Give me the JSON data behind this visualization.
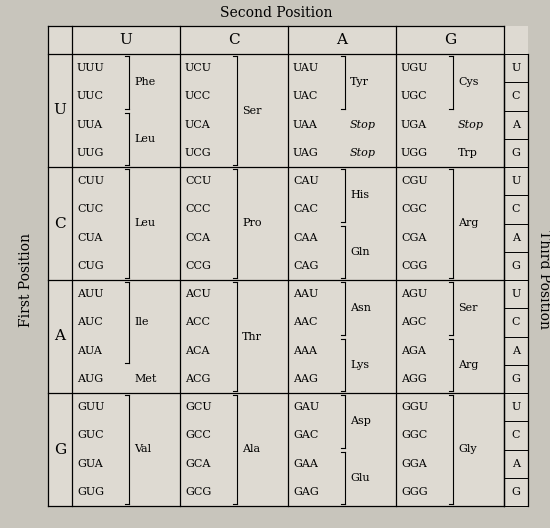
{
  "title": "Second Position",
  "left_label": "First Position",
  "right_label": "Third Position",
  "second_pos": [
    "U",
    "C",
    "A",
    "G"
  ],
  "first_pos": [
    "U",
    "C",
    "A",
    "G"
  ],
  "third_pos": [
    "U",
    "C",
    "A",
    "G"
  ],
  "bg_color": "#c8c5bc",
  "cell_bg": "#dedad2",
  "table_data": {
    "U": {
      "U": {
        "codons": [
          "UUU",
          "UUC",
          "UUA",
          "UUG"
        ],
        "groups": [
          [
            0,
            1,
            "Phe",
            false
          ],
          [
            2,
            3,
            "Leu",
            false
          ]
        ]
      },
      "C": {
        "codons": [
          "UCU",
          "UCC",
          "UCA",
          "UCG"
        ],
        "groups": [
          [
            0,
            3,
            "Ser",
            false
          ]
        ]
      },
      "A": {
        "codons": [
          "UAU",
          "UAC",
          "UAA",
          "UAG"
        ],
        "groups": [
          [
            0,
            1,
            "Tyr",
            false
          ],
          [
            2,
            -1,
            "Stop",
            true
          ],
          [
            3,
            -1,
            "Stop",
            true
          ]
        ]
      },
      "G": {
        "codons": [
          "UGU",
          "UGC",
          "UGA",
          "UGG"
        ],
        "groups": [
          [
            0,
            1,
            "Cys",
            false
          ],
          [
            2,
            -1,
            "Stop",
            true
          ],
          [
            3,
            -1,
            "Trp",
            false
          ]
        ]
      }
    },
    "C": {
      "U": {
        "codons": [
          "CUU",
          "CUC",
          "CUA",
          "CUG"
        ],
        "groups": [
          [
            0,
            3,
            "Leu",
            false
          ]
        ]
      },
      "C": {
        "codons": [
          "CCU",
          "CCC",
          "CCA",
          "CCG"
        ],
        "groups": [
          [
            0,
            3,
            "Pro",
            false
          ]
        ]
      },
      "A": {
        "codons": [
          "CAU",
          "CAC",
          "CAA",
          "CAG"
        ],
        "groups": [
          [
            0,
            1,
            "His",
            false
          ],
          [
            2,
            3,
            "Gln",
            false
          ]
        ]
      },
      "G": {
        "codons": [
          "CGU",
          "CGC",
          "CGA",
          "CGG"
        ],
        "groups": [
          [
            0,
            3,
            "Arg",
            false
          ]
        ]
      }
    },
    "A": {
      "U": {
        "codons": [
          "AUU",
          "AUC",
          "AUA",
          "AUG"
        ],
        "groups": [
          [
            0,
            2,
            "Ile",
            false
          ],
          [
            3,
            -1,
            "Met",
            false
          ]
        ]
      },
      "C": {
        "codons": [
          "ACU",
          "ACC",
          "ACA",
          "ACG"
        ],
        "groups": [
          [
            0,
            3,
            "Thr",
            false
          ]
        ]
      },
      "A": {
        "codons": [
          "AAU",
          "AAC",
          "AAA",
          "AAG"
        ],
        "groups": [
          [
            0,
            1,
            "Asn",
            false
          ],
          [
            2,
            3,
            "Lys",
            false
          ]
        ]
      },
      "G": {
        "codons": [
          "AGU",
          "AGC",
          "AGA",
          "AGG"
        ],
        "groups": [
          [
            0,
            1,
            "Ser",
            false
          ],
          [
            2,
            3,
            "Arg",
            false
          ]
        ]
      }
    },
    "G": {
      "U": {
        "codons": [
          "GUU",
          "GUC",
          "GUA",
          "GUG"
        ],
        "groups": [
          [
            0,
            3,
            "Val",
            false
          ]
        ]
      },
      "C": {
        "codons": [
          "GCU",
          "GCC",
          "GCA",
          "GCG"
        ],
        "groups": [
          [
            0,
            3,
            "Ala",
            false
          ]
        ]
      },
      "A": {
        "codons": [
          "GAU",
          "GAC",
          "GAA",
          "GAG"
        ],
        "groups": [
          [
            0,
            1,
            "Asp",
            false
          ],
          [
            2,
            3,
            "Glu",
            false
          ]
        ]
      },
      "G": {
        "codons": [
          "GGU",
          "GGC",
          "GGA",
          "GGG"
        ],
        "groups": [
          [
            0,
            3,
            "Gly",
            false
          ]
        ]
      }
    }
  }
}
